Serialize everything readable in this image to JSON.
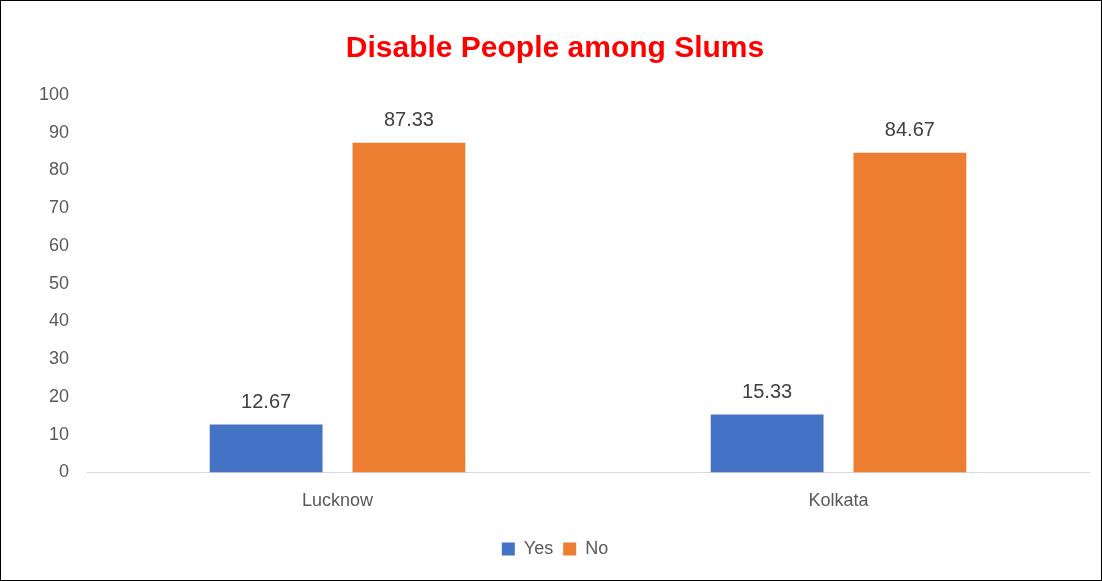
{
  "chart_data": {
    "type": "bar",
    "title": "Disable People among Slums",
    "categories": [
      "Lucknow",
      "Kolkata"
    ],
    "series": [
      {
        "name": "Yes",
        "color": "#4472c4",
        "values": [
          12.67,
          15.33
        ]
      },
      {
        "name": "No",
        "color": "#ed7d31",
        "values": [
          87.33,
          84.67
        ]
      }
    ],
    "ylim": [
      0,
      100
    ],
    "yticks": [
      0,
      10,
      20,
      30,
      40,
      50,
      60,
      70,
      80,
      90,
      100
    ],
    "grid": false,
    "legend": "bottom",
    "data_labels": true
  }
}
